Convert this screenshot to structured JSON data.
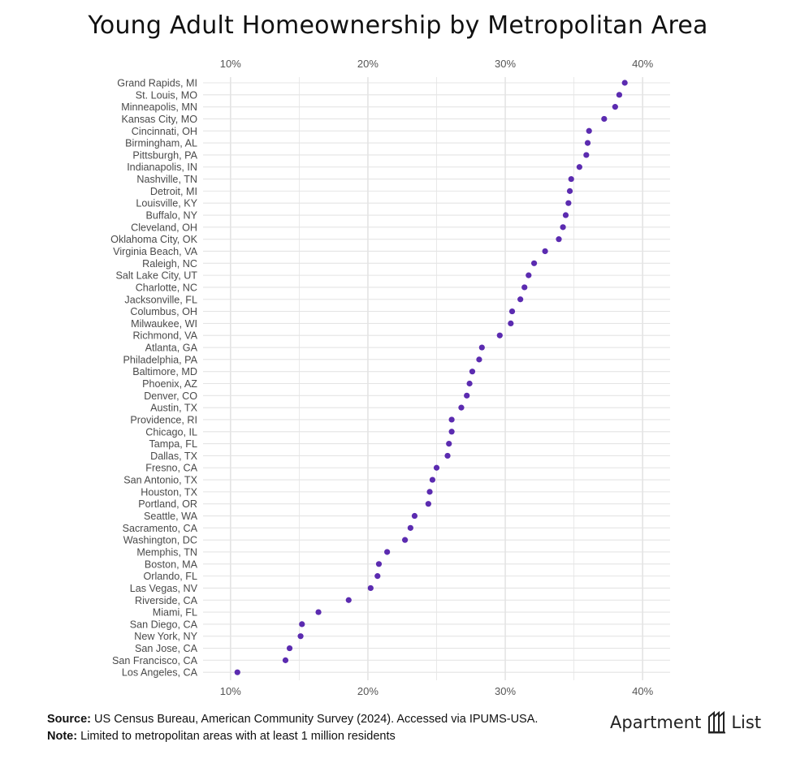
{
  "title": "Young Adult Homeownership by Metropolitan Area",
  "footer": {
    "source_label": "Source:",
    "source_text": " US Census Bureau, American Community Survey (2024). Accessed via IPUMS-USA.",
    "note_label": "Note:",
    "note_text": " Limited to metropolitan areas with at least 1 million residents"
  },
  "brand": {
    "word1": "Apartment",
    "word2": "List",
    "icon": "apartment-list-logo-icon"
  },
  "colors": {
    "point": "#5b2bb0",
    "grid": "#e4e4e4",
    "axis_text": "#555555"
  },
  "chart_data": {
    "type": "scatter",
    "title": "Young Adult Homeownership by Metropolitan Area",
    "xlabel": "",
    "ylabel": "",
    "xlim": [
      8,
      42
    ],
    "x_ticks": [
      10,
      20,
      30,
      40
    ],
    "x_tick_labels": [
      "10%",
      "20%",
      "30%",
      "40%"
    ],
    "x_axis_position": "top and bottom",
    "grid": true,
    "categories": [
      "Grand Rapids, MI",
      "St. Louis, MO",
      "Minneapolis, MN",
      "Kansas City, MO",
      "Cincinnati, OH",
      "Birmingham, AL",
      "Pittsburgh, PA",
      "Indianapolis, IN",
      "Nashville, TN",
      "Detroit, MI",
      "Louisville, KY",
      "Buffalo, NY",
      "Cleveland, OH",
      "Oklahoma City, OK",
      "Virginia Beach, VA",
      "Raleigh, NC",
      "Salt Lake City, UT",
      "Charlotte, NC",
      "Jacksonville, FL",
      "Columbus, OH",
      "Milwaukee, WI",
      "Richmond, VA",
      "Atlanta, GA",
      "Philadelphia, PA",
      "Baltimore, MD",
      "Phoenix, AZ",
      "Denver, CO",
      "Austin, TX",
      "Providence, RI",
      "Chicago, IL",
      "Tampa, FL",
      "Dallas, TX",
      "Fresno, CA",
      "San Antonio, TX",
      "Houston, TX",
      "Portland, OR",
      "Seattle, WA",
      "Sacramento, CA",
      "Washington, DC",
      "Memphis, TN",
      "Boston, MA",
      "Orlando, FL",
      "Las Vegas, NV",
      "Riverside, CA",
      "Miami, FL",
      "San Diego, CA",
      "New York, NY",
      "San Jose, CA",
      "San Francisco, CA",
      "Los Angeles, CA"
    ],
    "values": [
      38.7,
      38.3,
      38.0,
      37.2,
      36.1,
      36.0,
      35.9,
      35.4,
      34.8,
      34.7,
      34.6,
      34.4,
      34.2,
      33.9,
      32.9,
      32.1,
      31.7,
      31.4,
      31.1,
      30.5,
      30.4,
      29.6,
      28.3,
      28.1,
      27.6,
      27.4,
      27.2,
      26.8,
      26.1,
      26.1,
      25.9,
      25.8,
      25.0,
      24.7,
      24.5,
      24.4,
      23.4,
      23.1,
      22.7,
      21.4,
      20.8,
      20.7,
      20.2,
      18.6,
      16.4,
      15.2,
      15.1,
      14.3,
      14.0,
      10.5
    ]
  }
}
